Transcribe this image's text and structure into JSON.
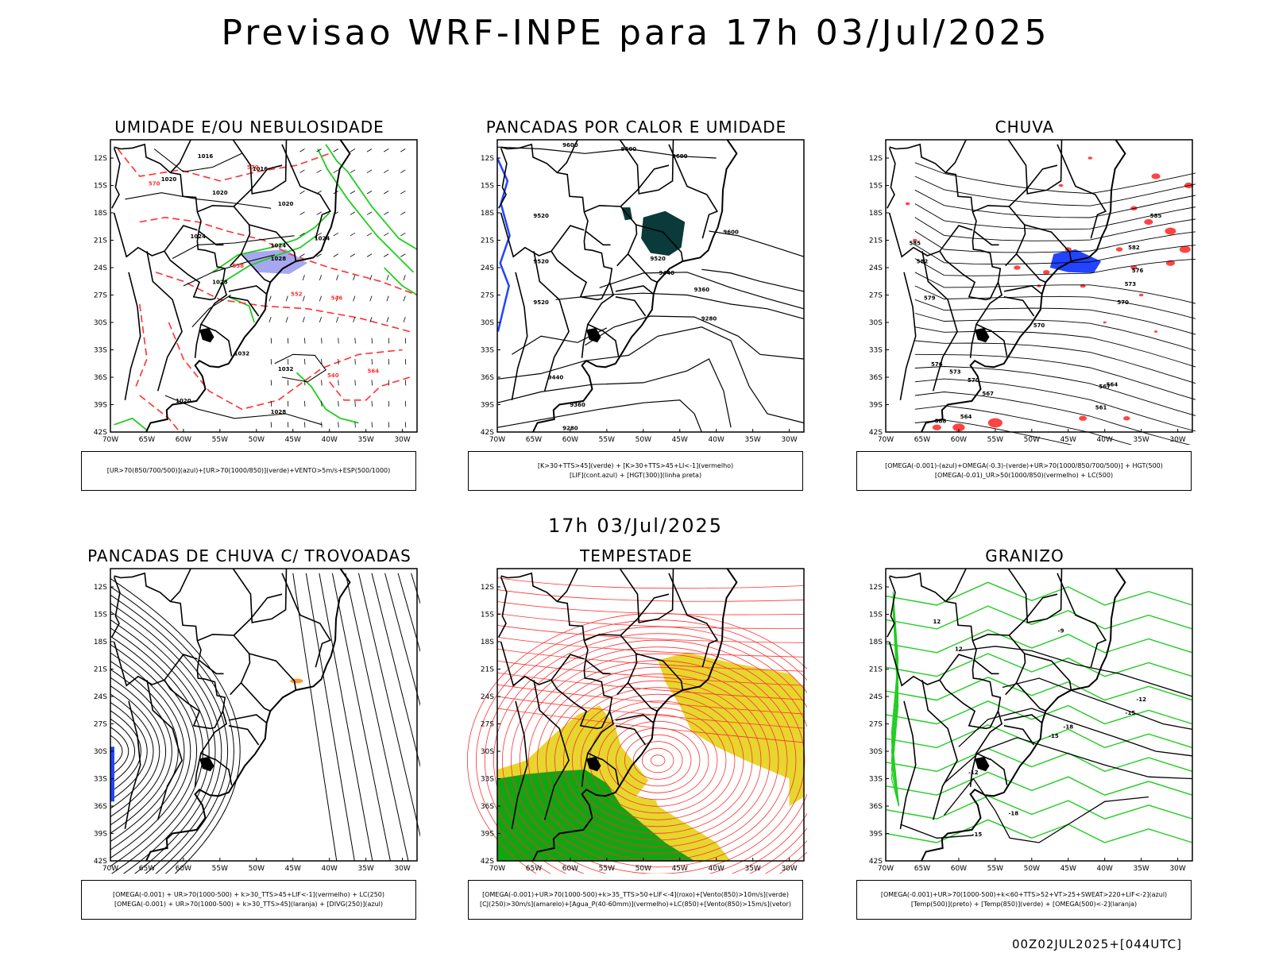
{
  "title": "Previsao WRF-INPE  para 17h 03/Jul/2025",
  "middle_title": "17h 03/Jul/2025",
  "footer": "00Z02JUL2025+[044UTC]",
  "axes": {
    "lat_ticks": [
      "12S",
      "15S",
      "18S",
      "21S",
      "24S",
      "27S",
      "30S",
      "33S",
      "36S",
      "39S",
      "42S"
    ],
    "lon_ticks": [
      "70W",
      "65W",
      "60W",
      "55W",
      "50W",
      "45W",
      "40W",
      "35W",
      "30W"
    ]
  },
  "colors": {
    "rh_midlevel": "#a7a7f0",
    "rh_lowlevel": "#22cc22",
    "thickness": "#ff3030",
    "deep_teal": "#0a3a3a",
    "lif_blue": "#2244ff",
    "yellow": "#e6d62e",
    "green": "#11a611",
    "orange": "#ff9a2a"
  },
  "panels": [
    {
      "title": "UMIDADE E/OU NEBULOSIDADE",
      "caption": [
        "[UR>70(850/700/500)](azul)+[UR>70(1000/850)](verde)+VENTO>5m/s+ESP(500/1000)"
      ],
      "labels": [
        "1016",
        "1016",
        "1020",
        "1020",
        "1020",
        "1024",
        "1024",
        "1024",
        "1028",
        "1028",
        "1032",
        "1032",
        "1020",
        "1028",
        "570",
        "570",
        "558",
        "552",
        "546",
        "540",
        "564"
      ]
    },
    {
      "title": "PANCADAS POR CALOR E UMIDADE",
      "caption": [
        "[K>30+TTS>45](verde) + [K>30+TTS>45+LI<-1](vermelho)",
        "[LIF](cont.azul) + [HGT(300)](linha preta)"
      ],
      "labels": [
        "9600",
        "9600",
        "9600",
        "9600",
        "9520",
        "9520",
        "9440",
        "9360",
        "9280",
        "9520",
        "9440",
        "9360",
        "9280",
        "9520"
      ]
    },
    {
      "title": "CHUVA",
      "caption": [
        "[OMEGA(-0.001)-(azul)+OMEGA(-0.3)-(verde)+UR>70(1000/850/700/500)] + HGT(500)",
        "[OMEGA(-0.01)_UR>50(1000/850)(vermelho) + LC(500)"
      ],
      "labels": [
        "585",
        "582",
        "576",
        "573",
        "570",
        "567",
        "564",
        "561",
        "570",
        "576",
        "573",
        "570",
        "567",
        "564",
        "579",
        "582",
        "585",
        "588"
      ]
    },
    {
      "title": "PANCADAS DE CHUVA C/ TROVOADAS",
      "caption": [
        "[OMEGA(-0.001) + UR>70(1000-500) + k>30_TTS>45+LIF<-1](vermelho) + LC(250)",
        "[OMEGA(-0.001) + UR>70(1000-500) + k>30_TTS>45](laranja) + [DIVG(250)](azul)"
      ],
      "labels": []
    },
    {
      "title": "TEMPESTADE",
      "caption": [
        "[OMEGA(-0.001)+UR>70(1000-500)+k>35_TTS>50+LIF<-4](roxo)+[Vento(850)>10m/s](verde)",
        "[CJ(250)>30m/s](amarelo)+[Agua_P(40-60mm)](vermelho)+LC(850)+[Vento(850)>15m/s](vetor)"
      ],
      "labels": []
    },
    {
      "title": "GRANIZO",
      "caption": [
        "[OMEGA(-0.001)+UR>70(1000-500)+k<60+TTS>52+VT>25+SWEAT>220+LIF<-2](azul)",
        "[Temp(500)](preto) + [Temp(850)](verde) + [OMEGA(500)<-2](laranja)"
      ],
      "labels": [
        "-9",
        "-12",
        "-15",
        "-18",
        "-12",
        "-15",
        "-18",
        "-15",
        "12",
        "12"
      ]
    }
  ]
}
